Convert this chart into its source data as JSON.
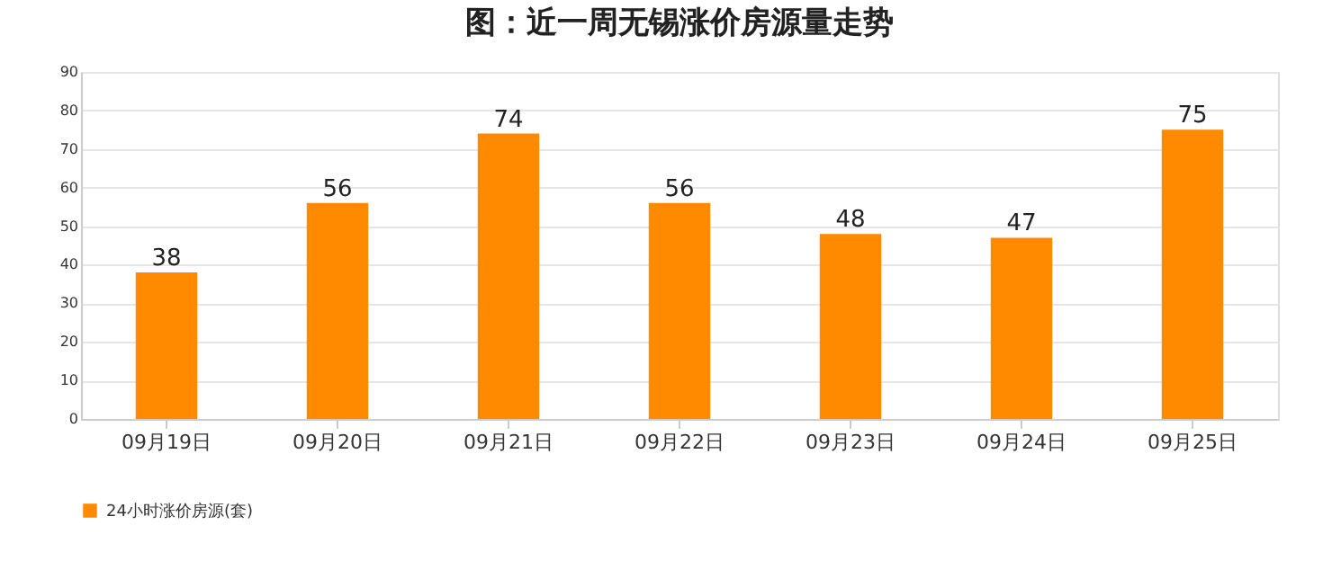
{
  "chart_data": {
    "type": "bar",
    "title": "图：近一周无锡涨价房源量走势",
    "categories": [
      "09月19日",
      "09月20日",
      "09月21日",
      "09月22日",
      "09月23日",
      "09月24日",
      "09月25日"
    ],
    "series": [
      {
        "name": "24小时涨价房源(套)",
        "color": "#ff8a00",
        "values": [
          38,
          56,
          74,
          56,
          48,
          47,
          75
        ]
      }
    ],
    "ylim": [
      0,
      90
    ],
    "yticks": [
      0,
      10,
      20,
      30,
      40,
      50,
      60,
      70,
      80,
      90
    ],
    "grid": "y",
    "legend": "bottom",
    "data_labels": true
  }
}
